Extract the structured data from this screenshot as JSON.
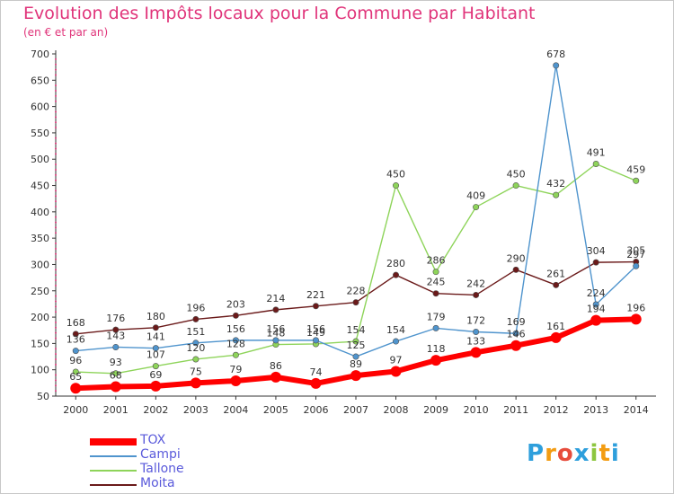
{
  "header": {
    "title": "Evolution des Impôts locaux pour la Commune par Habitant",
    "subtitle": "(en € et par an)"
  },
  "logo": {
    "text": "Proxiti",
    "colors": [
      "#2e9fdc",
      "#f39c12",
      "#e74c3c",
      "#2e9fdc",
      "#8dc63f",
      "#f39c12",
      "#2e9fdc"
    ]
  },
  "chart_data": {
    "type": "line",
    "title": "Evolution des Impôts locaux pour la Commune par Habitant",
    "subtitle": "(en € et par an)",
    "x": [
      "2000",
      "2001",
      "2002",
      "2003",
      "2004",
      "2005",
      "2006",
      "2007",
      "2008",
      "2009",
      "2010",
      "2011",
      "2012",
      "2013",
      "2014"
    ],
    "ylim": [
      50,
      700
    ],
    "yticks": [
      50,
      100,
      150,
      200,
      250,
      300,
      350,
      400,
      450,
      500,
      550,
      600,
      650,
      700
    ],
    "grid": false,
    "legend_position": "bottom-left",
    "series": [
      {
        "name": "TOX",
        "color": "#ff0000",
        "values": [
          65,
          68,
          69,
          75,
          79,
          86,
          74,
          89,
          97,
          118,
          133,
          146,
          161,
          194,
          196
        ]
      },
      {
        "name": "Campi",
        "color": "#4f94cd",
        "values": [
          136,
          143,
          141,
          151,
          156,
          156,
          156,
          125,
          154,
          179,
          172,
          169,
          678,
          224,
          297
        ]
      },
      {
        "name": "Tallone",
        "color": "#8ed45a",
        "values": [
          96,
          93,
          107,
          120,
          128,
          148,
          149,
          154,
          450,
          286,
          409,
          450,
          432,
          491,
          459
        ]
      },
      {
        "name": "Moita",
        "color": "#6b1a1a",
        "values": [
          168,
          176,
          180,
          196,
          203,
          214,
          221,
          228,
          280,
          245,
          242,
          290,
          261,
          304,
          305
        ]
      }
    ]
  }
}
